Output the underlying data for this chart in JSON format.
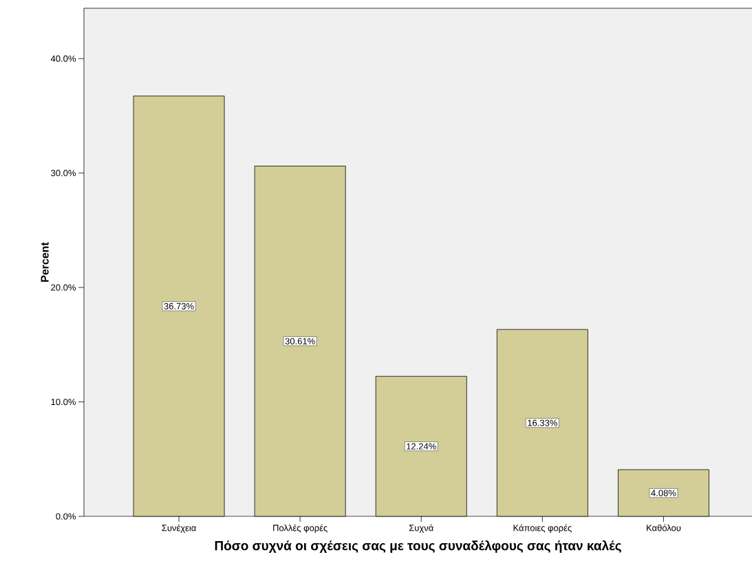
{
  "chart_data": {
    "type": "bar",
    "xlabel": "Πόσο συχνά οι σχέσεις σας με τους συναδέλφους σας ήταν καλές",
    "ylabel": "Percent",
    "categories": [
      "Συνέχεια",
      "Πολλές φορές",
      "Συχνά",
      "Κάποιες φορές",
      "Καθόλου"
    ],
    "values": [
      36.73,
      30.61,
      12.24,
      16.33,
      4.08
    ],
    "value_labels": [
      "36.73%",
      "30.61%",
      "12.24%",
      "16.33%",
      "4.08%"
    ],
    "color": "#d3ce97",
    "ylim": [
      0,
      44.4
    ],
    "yticks": [
      {
        "value": 0,
        "label": "0.0%"
      },
      {
        "value": 10,
        "label": "10.0%"
      },
      {
        "value": 20,
        "label": "20.0%"
      },
      {
        "value": 30,
        "label": "30.0%"
      },
      {
        "value": 40,
        "label": "40.0%"
      }
    ],
    "grid": false
  }
}
